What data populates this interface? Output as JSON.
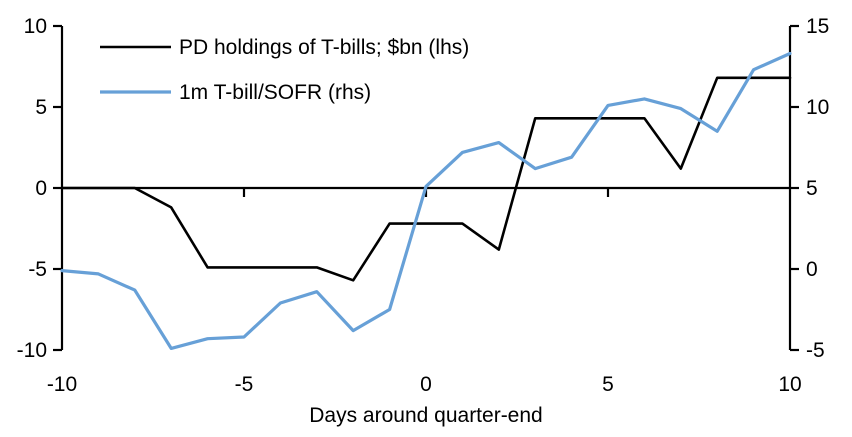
{
  "chart_data": {
    "type": "line",
    "title": "",
    "xlabel": "Days around quarter-end",
    "x": [
      -10,
      -9,
      -8,
      -7,
      -6,
      -5,
      -4,
      -3,
      -2,
      -1,
      0,
      1,
      2,
      3,
      4,
      5,
      6,
      7,
      8,
      9,
      10
    ],
    "series": [
      {
        "name": "PD holdings of T-bills; $bn (lhs)",
        "axis": "lhs",
        "color": "#000000",
        "values": [
          0,
          0,
          0,
          -1.2,
          -4.9,
          -4.9,
          -4.9,
          -4.9,
          -5.7,
          -2.2,
          -2.2,
          -2.2,
          -3.8,
          4.3,
          4.3,
          4.3,
          4.3,
          1.2,
          6.8,
          6.8,
          6.8
        ]
      },
      {
        "name": "1m T-bill/SOFR (rhs)",
        "axis": "rhs",
        "color": "#67A0D7",
        "values": [
          -0.1,
          -0.3,
          -1.3,
          -4.9,
          -4.3,
          -4.2,
          -2.1,
          -1.4,
          -3.8,
          -2.5,
          5.1,
          7.2,
          7.8,
          6.2,
          6.9,
          10.1,
          10.5,
          9.9,
          8.5,
          12.3,
          13.3
        ]
      }
    ],
    "left_axis": {
      "ticks": [
        10,
        5,
        0,
        -5,
        -10
      ],
      "range": [
        -10,
        10
      ]
    },
    "right_axis": {
      "ticks": [
        15,
        10,
        5,
        0,
        -5
      ],
      "range": [
        -5,
        15
      ]
    },
    "x_ticks": [
      -10,
      -5,
      0,
      5,
      10
    ],
    "xlim": [
      -10,
      10
    ],
    "grid": false,
    "legend_position": "top-left",
    "axis_color": "#000000"
  }
}
